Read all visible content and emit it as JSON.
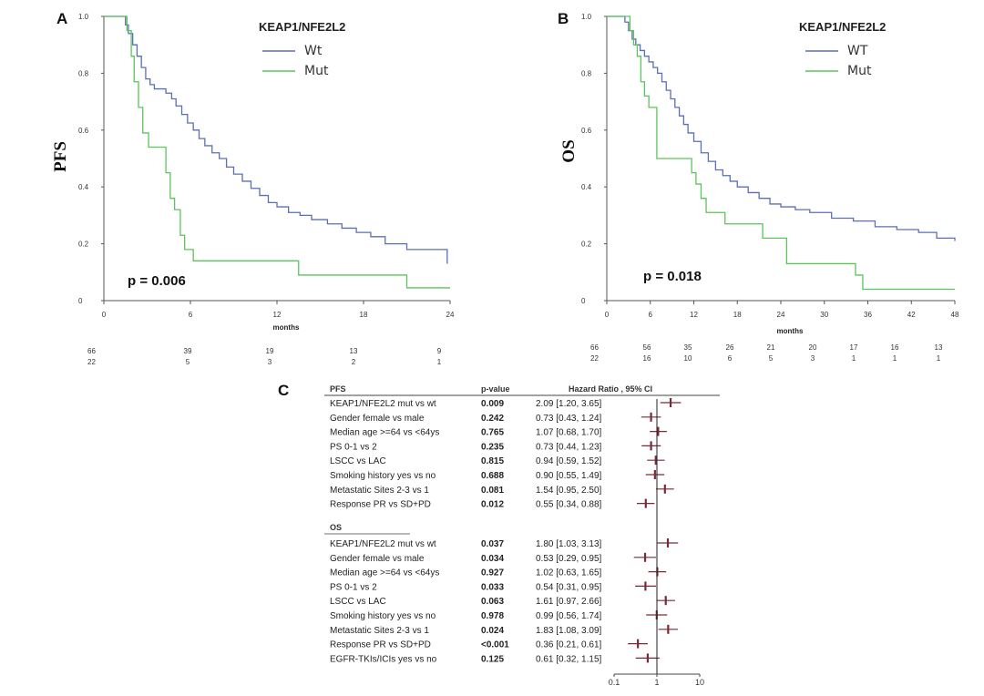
{
  "chart_data": [
    {
      "type": "line",
      "panel": "A",
      "title": "KEAP1/NFE2L2",
      "ylabel": "PFS",
      "xlabel": "months",
      "xlim": [
        0,
        24
      ],
      "ylim": [
        0,
        1.0
      ],
      "xticks": [
        0,
        6,
        12,
        18,
        24
      ],
      "yticks": [
        0,
        0.2,
        0.4,
        0.6,
        0.8,
        1.0
      ],
      "ytick_labels": [
        "0",
        "0.2",
        "0.4",
        "0.6",
        "0.8",
        "1.0"
      ],
      "annotation": "p = 0.006",
      "legend": [
        "Wt",
        "Mut"
      ],
      "series": [
        {
          "name": "Wt",
          "color": "#5b6fb5",
          "x": [
            0,
            1.5,
            1.7,
            2.0,
            2.3,
            2.6,
            2.9,
            3.2,
            3.5,
            4.3,
            4.7,
            5.0,
            5.4,
            5.8,
            6.2,
            6.6,
            7.0,
            7.5,
            8.0,
            8.5,
            9.0,
            9.6,
            10.2,
            10.8,
            11.4,
            12.0,
            12.8,
            13.6,
            14.4,
            15.5,
            16.5,
            17.5,
            18.5,
            19.5,
            21.0,
            23.8
          ],
          "values": [
            1.0,
            0.97,
            0.94,
            0.9,
            0.86,
            0.82,
            0.78,
            0.76,
            0.745,
            0.73,
            0.71,
            0.685,
            0.655,
            0.625,
            0.6,
            0.57,
            0.545,
            0.52,
            0.5,
            0.47,
            0.445,
            0.42,
            0.395,
            0.37,
            0.345,
            0.33,
            0.31,
            0.3,
            0.285,
            0.27,
            0.255,
            0.24,
            0.225,
            0.2,
            0.18,
            0.13
          ]
        },
        {
          "name": "Mut",
          "color": "#5cc45c",
          "x": [
            0,
            1.6,
            1.9,
            2.1,
            2.4,
            2.7,
            3.1,
            4.3,
            4.6,
            4.9,
            5.3,
            5.6,
            6.2,
            7.2,
            13.5,
            21.0,
            24
          ],
          "values": [
            1.0,
            0.95,
            0.86,
            0.77,
            0.68,
            0.59,
            0.54,
            0.45,
            0.36,
            0.32,
            0.23,
            0.18,
            0.14,
            0.14,
            0.09,
            0.045,
            0.045
          ]
        }
      ],
      "risk_table": {
        "rows": [
          {
            "name": "Wt",
            "values": [
              "66",
              "39",
              "19",
              "13",
              "9"
            ]
          },
          {
            "name": "Mut",
            "values": [
              "22",
              "5",
              "3",
              "2",
              "1"
            ]
          }
        ]
      }
    },
    {
      "type": "line",
      "panel": "B",
      "title": "KEAP1/NFE2L2",
      "ylabel": "OS",
      "xlabel": "months",
      "xlim": [
        0,
        48
      ],
      "ylim": [
        0,
        1.0
      ],
      "xticks": [
        0,
        6,
        12,
        18,
        24,
        30,
        36,
        42,
        48
      ],
      "yticks": [
        0,
        0.2,
        0.4,
        0.6,
        0.8,
        1.0
      ],
      "ytick_labels": [
        "0",
        "0.2",
        "0.4",
        "0.6",
        "0.8",
        "1.0"
      ],
      "annotation": "p = 0.018",
      "legend": [
        "WT",
        "Mut"
      ],
      "series": [
        {
          "name": "WT",
          "color": "#5b6fb5",
          "x": [
            0,
            2.5,
            3.0,
            3.5,
            4.0,
            4.6,
            5.2,
            5.8,
            6.4,
            7.0,
            7.6,
            8.2,
            8.8,
            9.4,
            10.0,
            10.6,
            11.2,
            12.0,
            13.0,
            14.0,
            15.0,
            16.0,
            17.0,
            18.0,
            19.5,
            21.0,
            22.5,
            24.0,
            26.0,
            28.0,
            31.0,
            34.0,
            37.0,
            40.0,
            43.0,
            45.5,
            48.0
          ],
          "values": [
            1.0,
            0.98,
            0.95,
            0.92,
            0.9,
            0.88,
            0.86,
            0.84,
            0.82,
            0.8,
            0.77,
            0.74,
            0.71,
            0.68,
            0.65,
            0.62,
            0.59,
            0.56,
            0.52,
            0.49,
            0.46,
            0.44,
            0.42,
            0.4,
            0.38,
            0.36,
            0.34,
            0.33,
            0.32,
            0.31,
            0.29,
            0.28,
            0.26,
            0.25,
            0.24,
            0.22,
            0.21
          ]
        },
        {
          "name": "Mut",
          "color": "#5cc45c",
          "x": [
            0,
            3.2,
            3.7,
            4.2,
            4.7,
            5.2,
            5.8,
            6.9,
            11.7,
            12.3,
            13.0,
            13.7,
            16.3,
            21.5,
            24.8,
            34.3,
            35.3,
            48.0
          ],
          "values": [
            1.0,
            0.95,
            0.9,
            0.86,
            0.77,
            0.72,
            0.68,
            0.5,
            0.45,
            0.41,
            0.36,
            0.31,
            0.27,
            0.22,
            0.13,
            0.09,
            0.04,
            0.04
          ]
        }
      ],
      "risk_table": {
        "rows": [
          {
            "name": "WT",
            "values": [
              "66",
              "56",
              "35",
              "26",
              "21",
              "20",
              "17",
              "16",
              "13"
            ]
          },
          {
            "name": "Mut",
            "values": [
              "22",
              "16",
              "10",
              "6",
              "5",
              "3",
              "1",
              "1",
              "1"
            ]
          }
        ]
      }
    },
    {
      "type": "forest",
      "panel": "C",
      "xscale": "log",
      "xlim": [
        0.1,
        10
      ],
      "xticks": [
        0.1,
        1,
        10
      ],
      "xtick_labels": [
        "0.1",
        "1",
        "10"
      ],
      "reference_line": 1,
      "headers": {
        "label": "PFS",
        "p": "p-value",
        "hr": "Hazard Ratio , 95% CI"
      },
      "groups": [
        {
          "name": "PFS",
          "rows": [
            {
              "label": "KEAP1/NFE2L2 mut vs wt",
              "p": "0.009",
              "hr_text": "2.09 [1.20, 3.65]",
              "hr": 2.09,
              "lo": 1.2,
              "hi": 3.65
            },
            {
              "label": "Gender female vs male",
              "p": "0.242",
              "hr_text": "0.73 [0.43, 1.24]",
              "hr": 0.73,
              "lo": 0.43,
              "hi": 1.24
            },
            {
              "label": "Median age >=64 vs <64ys",
              "p": "0.765",
              "hr_text": "1.07 [0.68, 1.70]",
              "hr": 1.07,
              "lo": 0.68,
              "hi": 1.7
            },
            {
              "label": "PS 0-1 vs 2",
              "p": "0.235",
              "hr_text": "0.73 [0.44, 1.23]",
              "hr": 0.73,
              "lo": 0.44,
              "hi": 1.23
            },
            {
              "label": "LSCC vs LAC",
              "p": "0.815",
              "hr_text": "0.94 [0.59, 1.52]",
              "hr": 0.94,
              "lo": 0.59,
              "hi": 1.52
            },
            {
              "label": "Smoking history yes vs no",
              "p": "0.688",
              "hr_text": "0.90 [0.55, 1.49]",
              "hr": 0.9,
              "lo": 0.55,
              "hi": 1.49
            },
            {
              "label": "Metastatic Sites 2-3 vs 1",
              "p": "0.081",
              "hr_text": "1.54 [0.95, 2.50]",
              "hr": 1.54,
              "lo": 0.95,
              "hi": 2.5
            },
            {
              "label": "Response PR vs SD+PD",
              "p": "0.012",
              "hr_text": "0.55 [0.34, 0.88]",
              "hr": 0.55,
              "lo": 0.34,
              "hi": 0.88
            }
          ]
        },
        {
          "name": "OS",
          "rows": [
            {
              "label": "KEAP1/NFE2L2 mut vs wt",
              "p": "0.037",
              "hr_text": "1.80 [1.03, 3.13]",
              "hr": 1.8,
              "lo": 1.03,
              "hi": 3.13
            },
            {
              "label": "Gender female vs male",
              "p": "0.034",
              "hr_text": "0.53 [0.29, 0.95]",
              "hr": 0.53,
              "lo": 0.29,
              "hi": 0.95
            },
            {
              "label": "Median age >=64 vs <64ys",
              "p": "0.927",
              "hr_text": "1.02 [0.63, 1.65]",
              "hr": 1.02,
              "lo": 0.63,
              "hi": 1.65
            },
            {
              "label": "PS 0-1 vs 2",
              "p": "0.033",
              "hr_text": "0.54 [0.31, 0.95]",
              "hr": 0.54,
              "lo": 0.31,
              "hi": 0.95
            },
            {
              "label": "LSCC vs LAC",
              "p": "0.063",
              "hr_text": "1.61 [0.97, 2.66]",
              "hr": 1.61,
              "lo": 0.97,
              "hi": 2.66
            },
            {
              "label": "Smoking history yes vs no",
              "p": "0.978",
              "hr_text": "0.99 [0.56, 1.74]",
              "hr": 0.99,
              "lo": 0.56,
              "hi": 1.74
            },
            {
              "label": "Metastatic Sites 2-3 vs 1",
              "p": "0.024",
              "hr_text": "1.83 [1.08, 3.09]",
              "hr": 1.83,
              "lo": 1.08,
              "hi": 3.09
            },
            {
              "label": "Response PR vs SD+PD",
              "p": "<0.001",
              "hr_text": "0.36 [0.21, 0.61]",
              "hr": 0.36,
              "lo": 0.21,
              "hi": 0.61
            },
            {
              "label": "EGFR-TKIs/ICIs yes vs no",
              "p": "0.125",
              "hr_text": "0.61 [0.32, 1.15]",
              "hr": 0.61,
              "lo": 0.32,
              "hi": 1.15
            }
          ]
        }
      ],
      "colors": {
        "marker": "#7a2a35",
        "ci": "#7a2a35",
        "reference": "#222222"
      }
    }
  ]
}
